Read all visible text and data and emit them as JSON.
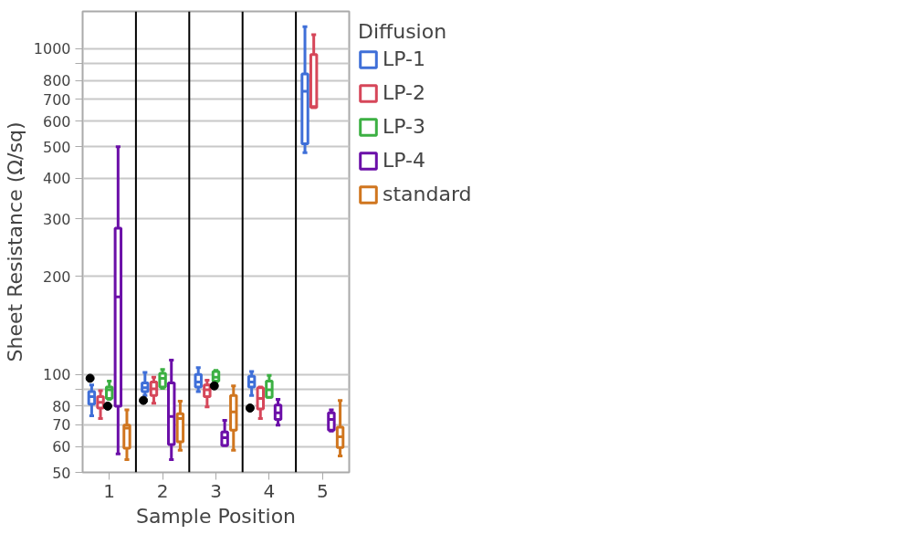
{
  "chart_data": {
    "type": "box",
    "xlabel": "Sample Position",
    "ylabel": "Sheet Resistance (Ω/sq)",
    "legend_title": "Diffusion",
    "legend": "right",
    "grid": "y",
    "log": "y",
    "categories": [
      "1",
      "2",
      "3",
      "4",
      "5"
    ],
    "ylim": [
      50,
      1303
    ],
    "yticks": [
      50,
      60,
      70,
      80,
      {
        "value": 90,
        "label": null
      },
      100,
      200,
      300,
      400,
      500,
      600,
      700,
      800,
      {
        "value": 900,
        "label": null
      },
      1000
    ],
    "series": [
      {
        "name": "LP-1",
        "color": "#3f6fd8",
        "boxes": [
          {
            "low": 74.6,
            "q1": 81,
            "median": 85.5,
            "q3": 88.5,
            "high": 92.8,
            "outliers": [
              97.3
            ]
          },
          {
            "low": 86.1,
            "q1": 88.5,
            "median": 91,
            "q3": 94.1,
            "high": 101.4,
            "outliers": [
              83.2
            ]
          },
          {
            "low": 88.5,
            "q1": 91.5,
            "median": 94.7,
            "q3": 100,
            "high": 104.9
          },
          {
            "low": 86.1,
            "q1": 91.5,
            "median": 94.7,
            "q3": 98.6,
            "high": 102,
            "outliers": [
              78.8
            ]
          },
          {
            "low": 480,
            "q1": 511,
            "median": 741,
            "q3": 837,
            "high": 1170
          }
        ]
      },
      {
        "name": "LP-2",
        "color": "#d6475a",
        "boxes": [
          {
            "low": 73.2,
            "q1": 78.8,
            "median": 82.1,
            "q3": 85.5,
            "high": 89.1
          },
          {
            "low": 81.6,
            "q1": 86.1,
            "median": 90.3,
            "q3": 94.7,
            "high": 98
          },
          {
            "low": 79.4,
            "q1": 85.5,
            "median": 89.7,
            "q3": 92.8,
            "high": 96
          },
          {
            "low": 73.2,
            "q1": 78.3,
            "median": 84.4,
            "q3": 91,
            "high": 91.5
          },
          {
            "low": 660,
            "q1": 660,
            "median": 665,
            "q3": 961,
            "high": 1106
          }
        ]
      },
      {
        "name": "LP-3",
        "color": "#3cb043",
        "boxes": [
          {
            "low": 83.8,
            "q1": 84.4,
            "median": 89.7,
            "q3": 91.5,
            "high": 95.4,
            "outliers": [
              79.9
            ]
          },
          {
            "low": 90.5,
            "q1": 91.5,
            "median": 97.3,
            "q3": 100.7,
            "high": 103.5
          },
          {
            "low": 94.7,
            "q1": 95.4,
            "median": 98,
            "q3": 102,
            "high": 102.8,
            "outliers": [
              92.2
            ]
          },
          {
            "low": 85,
            "q1": 85,
            "median": 89.7,
            "q3": 95.4,
            "high": 99.3
          },
          null
        ]
      },
      {
        "name": "LP-4",
        "color": "#6b0fa8",
        "boxes": [
          {
            "low": 57,
            "q1": 79.9,
            "median": 173,
            "q3": 281,
            "high": 500
          },
          {
            "low": 54.7,
            "q1": 60.9,
            "median": 74.2,
            "q3": 94.1,
            "high": 110.7
          },
          {
            "low": 60.5,
            "q1": 60.5,
            "median": 63.9,
            "q3": 66.5,
            "high": 72.2
          },
          {
            "low": 69.8,
            "q1": 72.7,
            "median": 76.2,
            "q3": 80.5,
            "high": 83.8
          },
          {
            "low": 67,
            "q1": 67.4,
            "median": 72.7,
            "q3": 76.2,
            "high": 77.8
          }
        ]
      },
      {
        "name": "standard",
        "color": "#d0761f",
        "boxes": [
          {
            "low": 54.7,
            "q1": 59.3,
            "median": 68.4,
            "q3": 69.8,
            "high": 77.8
          },
          {
            "low": 58.5,
            "q1": 62.1,
            "median": 73.2,
            "q3": 75.7,
            "high": 82.7
          },
          {
            "low": 58.5,
            "q1": 67.4,
            "median": 76.7,
            "q3": 86.1,
            "high": 92.2
          },
          null,
          {
            "low": 56.2,
            "q1": 59.6,
            "median": 64.3,
            "q3": 68.8,
            "high": 83.2
          }
        ]
      }
    ]
  }
}
